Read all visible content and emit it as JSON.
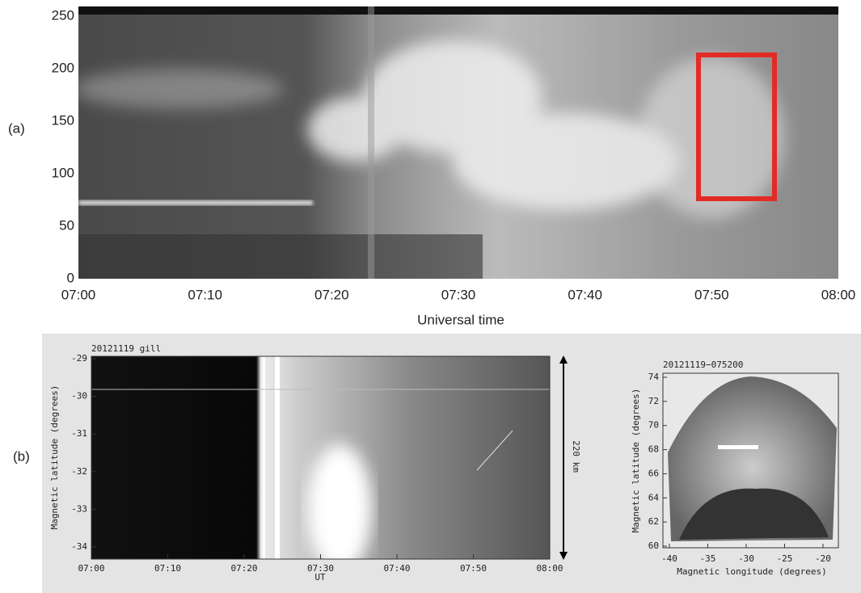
{
  "panel_a": {
    "label": "(a)",
    "yticks": [
      0,
      50,
      100,
      150,
      200,
      250
    ],
    "xticks": [
      "07:00",
      "07:10",
      "07:20",
      "07:30",
      "07:40",
      "07:50",
      "08:00"
    ],
    "xlabel": "Universal time"
  },
  "panel_b": {
    "label": "(b)",
    "keogram": {
      "title": "20121119  gill",
      "yticks": [
        -29,
        -30,
        -31,
        -32,
        -33,
        -34
      ],
      "xticks": [
        "07:00",
        "07:10",
        "07:20",
        "07:30",
        "07:40",
        "07:50",
        "08:00"
      ],
      "xlabel": "UT",
      "ylabel": "Magnetic latitude (degrees)",
      "scale_label": "220 km"
    },
    "map": {
      "title": "20121119−075200",
      "yticks": [
        60,
        62,
        64,
        66,
        68,
        70,
        72,
        74
      ],
      "xticks": [
        -40,
        -35,
        -30,
        -25,
        -20
      ],
      "xlabel": "Magnetic  longitude (degrees)",
      "ylabel": "Magnetic  latitude (degrees)"
    }
  }
}
